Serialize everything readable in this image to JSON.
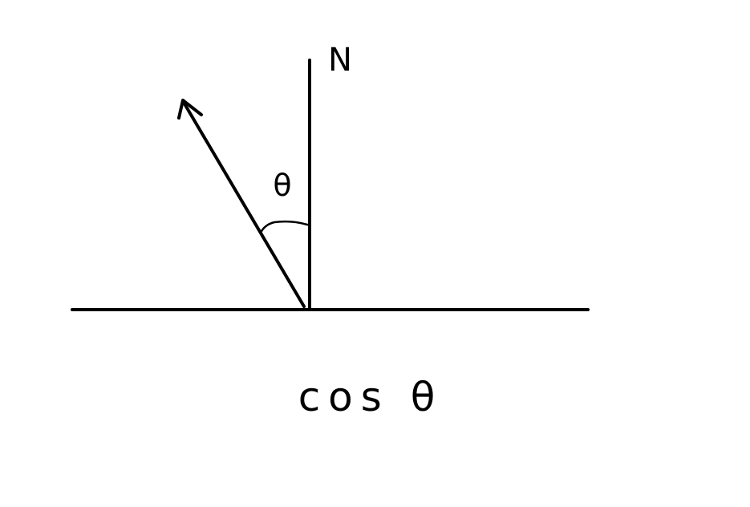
{
  "labels": {
    "normal": "N",
    "angle": "θ",
    "formula": "cos θ"
  }
}
